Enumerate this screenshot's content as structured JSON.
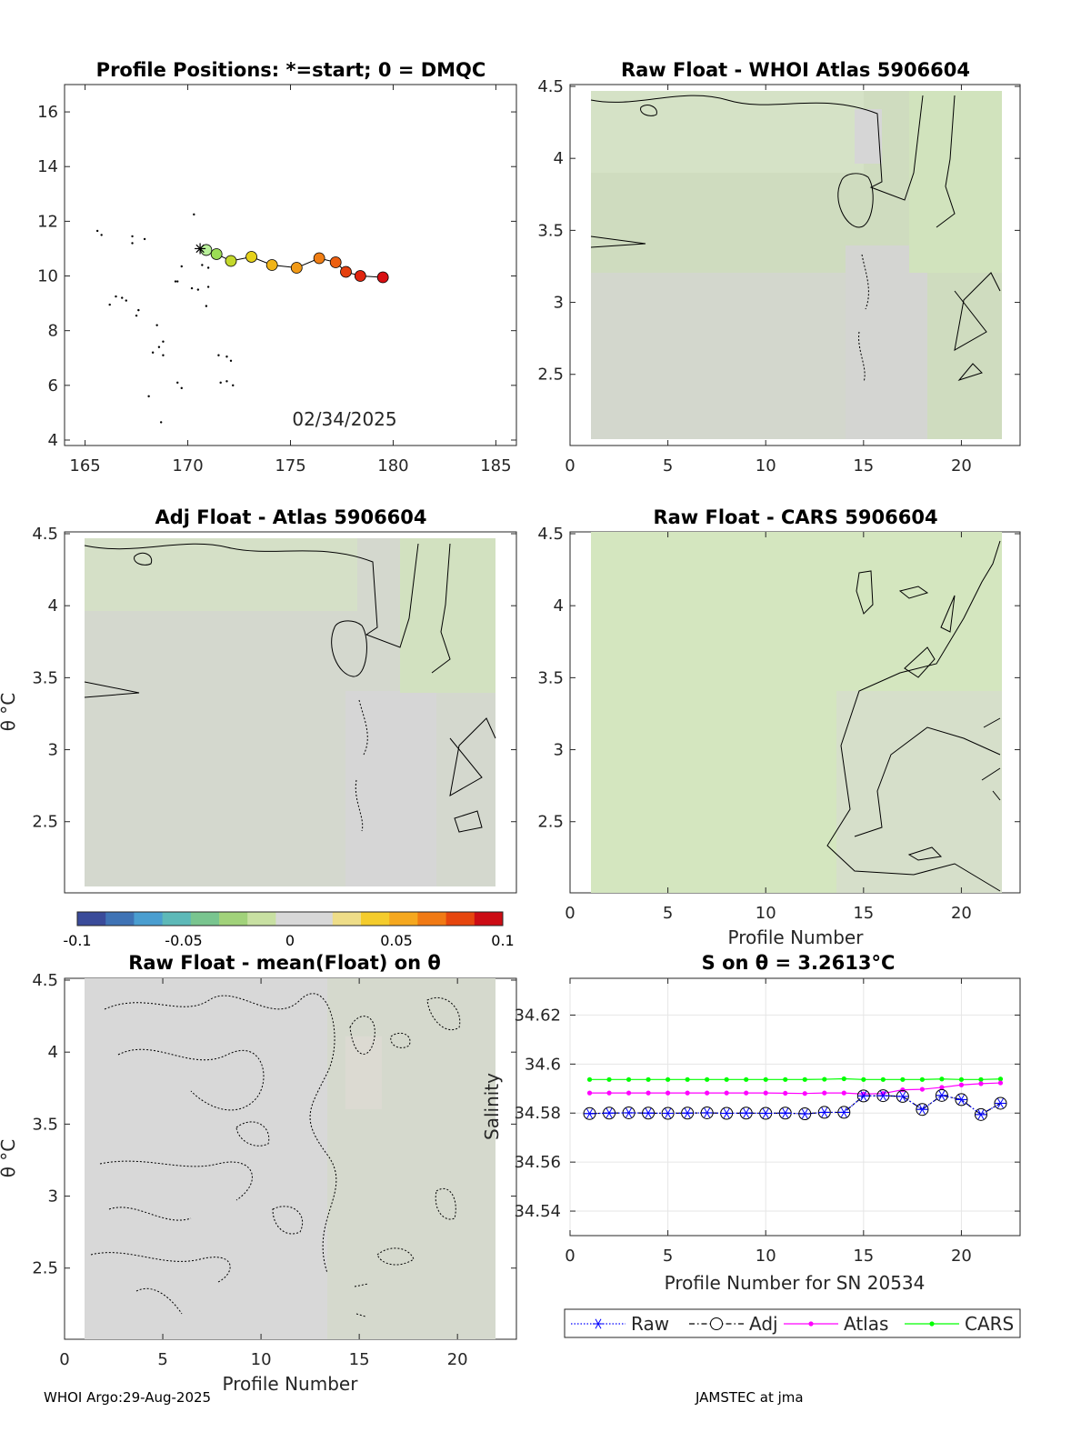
{
  "footer": {
    "left": "WHOI Argo:29-Aug-2025",
    "right": "JAMSTEC at jma"
  },
  "colorbar": {
    "ticks": [
      "-0.1",
      "-0.05",
      "0",
      "0.05",
      "0.1"
    ],
    "colors": [
      "#3a4b9a",
      "#3f73b5",
      "#4a9ed0",
      "#5db9b8",
      "#79c58f",
      "#a1d27a",
      "#c8e0a2",
      "#d8d8d8",
      "#d8d8d8",
      "#eedd88",
      "#f4cc2c",
      "#f5a81f",
      "#f17a14",
      "#e6460e",
      "#cc0c14"
    ]
  },
  "chart_data": [
    {
      "type": "scatter",
      "id": "positions",
      "title": "Profile Positions: *=start; 0 = DMQC",
      "xlim": [
        164,
        186
      ],
      "ylim": [
        3.8,
        17
      ],
      "xticks": [
        165,
        170,
        175,
        180,
        185
      ],
      "yticks": [
        4,
        6,
        8,
        10,
        12,
        14,
        16
      ],
      "annotation": "02/34/2025",
      "start": [
        170.6,
        11.0
      ],
      "track": [
        [
          170.6,
          11.0
        ],
        [
          170.9,
          10.95
        ],
        [
          171.4,
          10.8
        ],
        [
          172.1,
          10.55
        ],
        [
          173.1,
          10.7
        ],
        [
          174.1,
          10.4
        ],
        [
          175.3,
          10.3
        ],
        [
          176.4,
          10.65
        ],
        [
          177.2,
          10.5
        ],
        [
          177.7,
          10.15
        ],
        [
          178.4,
          10.0
        ],
        [
          179.5,
          9.95
        ]
      ],
      "track_colors": [
        "#ffffff",
        "#b9f09a",
        "#9bdd55",
        "#c4d82c",
        "#e6d21b",
        "#f0b418",
        "#f19a17",
        "#f07e14",
        "#ec5f10",
        "#e5400e",
        "#e0250f",
        "#d80f12"
      ],
      "dots": [
        [
          165.6,
          11.65
        ],
        [
          165.8,
          11.5
        ],
        [
          167.3,
          11.45
        ],
        [
          167.3,
          11.2
        ],
        [
          167.9,
          11.35
        ],
        [
          170.3,
          12.25
        ],
        [
          170.7,
          10.4
        ],
        [
          169.7,
          10.35
        ],
        [
          169.5,
          9.8
        ],
        [
          169.4,
          9.8
        ],
        [
          170.2,
          9.55
        ],
        [
          170.5,
          9.5
        ],
        [
          171.0,
          9.6
        ],
        [
          166.5,
          9.25
        ],
        [
          166.8,
          9.2
        ],
        [
          167.0,
          9.1
        ],
        [
          166.2,
          8.95
        ],
        [
          167.6,
          8.75
        ],
        [
          167.5,
          8.55
        ],
        [
          168.5,
          8.2
        ],
        [
          168.8,
          7.6
        ],
        [
          168.6,
          7.4
        ],
        [
          168.3,
          7.2
        ],
        [
          168.8,
          7.1
        ],
        [
          171.5,
          7.1
        ],
        [
          171.9,
          7.05
        ],
        [
          172.1,
          6.9
        ],
        [
          169.5,
          6.1
        ],
        [
          169.7,
          5.9
        ],
        [
          171.9,
          6.15
        ],
        [
          171.6,
          6.1
        ],
        [
          172.2,
          6.0
        ],
        [
          168.1,
          5.6
        ],
        [
          168.7,
          4.65
        ],
        [
          170.9,
          8.9
        ],
        [
          171.0,
          10.3
        ]
      ]
    },
    {
      "type": "heatmap",
      "id": "raw-whoi",
      "title": "Raw Float - WHOI Atlas  5906604",
      "xlim": [
        0,
        23
      ],
      "ylim": [
        2.05,
        4.5
      ],
      "xticks": [
        0,
        5,
        10,
        15,
        20
      ],
      "yticks": [
        "2.5",
        "3",
        "3.5",
        "4",
        "4.5"
      ],
      "field": "greenish-gray anomaly field"
    },
    {
      "type": "heatmap",
      "id": "adj-atlas",
      "title": "Adj Float - Atlas  5906604",
      "ylabel": "θ °C",
      "xlim": [
        0,
        22
      ],
      "ylim": [
        2.05,
        4.5
      ],
      "xticks": [],
      "yticks": [
        "2.5",
        "3",
        "3.5",
        "4",
        "4.5"
      ],
      "field": "greenish-gray anomaly field"
    },
    {
      "type": "heatmap",
      "id": "raw-cars",
      "title": "Raw Float - CARS  5906604",
      "xlabel": "Profile Number",
      "xlim": [
        0,
        23
      ],
      "ylim": [
        2.05,
        4.5
      ],
      "xticks": [
        0,
        5,
        10,
        15,
        20
      ],
      "yticks": [
        "2.5",
        "3",
        "3.5",
        "4",
        "4.5"
      ],
      "field": "light green anomaly field"
    },
    {
      "type": "heatmap",
      "id": "raw-mean",
      "title": "Raw Float - mean(Float) on θ",
      "ylabel": "θ °C",
      "xlabel": "Profile Number",
      "xlim": [
        0,
        23
      ],
      "ylim": [
        2.05,
        4.5
      ],
      "xticks": [
        0,
        5,
        10,
        15,
        20
      ],
      "yticks": [
        "2.5",
        "3",
        "3.5",
        "4",
        "4.5"
      ],
      "field": "gray anomaly field, dotted contours"
    },
    {
      "type": "line",
      "id": "salinity",
      "title": "S on θ = 3.2613°C",
      "xlabel": "Profile Number for SN 20534",
      "ylabel": "Salinity",
      "xlim": [
        0,
        23
      ],
      "ylim": [
        34.53,
        34.635
      ],
      "xticks": [
        0,
        5,
        10,
        15,
        20
      ],
      "yticks": [
        "34.54",
        "34.56",
        "34.58",
        "34.6",
        "34.62"
      ],
      "x": [
        1,
        2,
        3,
        4,
        5,
        6,
        7,
        8,
        9,
        10,
        11,
        12,
        13,
        14,
        15,
        16,
        17,
        18,
        19,
        20,
        21,
        22
      ],
      "series": [
        {
          "name": "Raw",
          "color": "#0000ff",
          "values": [
            34.5798,
            34.58,
            34.5801,
            34.58,
            34.5799,
            34.58,
            34.5801,
            34.5799,
            34.58,
            34.5799,
            34.58,
            34.5797,
            34.5803,
            34.5803,
            34.587,
            34.5871,
            34.5868,
            34.5815,
            34.5872,
            34.5855,
            34.5794,
            34.584
          ]
        },
        {
          "name": "Adj",
          "color": "#000000",
          "values": [
            34.5798,
            34.58,
            34.5801,
            34.58,
            34.5799,
            34.58,
            34.5801,
            34.5799,
            34.58,
            34.5799,
            34.58,
            34.5797,
            34.5803,
            34.5803,
            34.587,
            34.5871,
            34.5868,
            34.5815,
            34.5872,
            34.5855,
            34.5794,
            34.584
          ]
        },
        {
          "name": "Atlas",
          "color": "#ff00ff",
          "values": [
            34.5882,
            34.5882,
            34.5882,
            34.5882,
            34.5882,
            34.5882,
            34.5882,
            34.5882,
            34.5882,
            34.5882,
            34.5881,
            34.588,
            34.5882,
            34.5882,
            34.5878,
            34.588,
            34.5895,
            34.5897,
            34.5905,
            34.5915,
            34.592,
            34.5923
          ]
        },
        {
          "name": "CARS",
          "color": "#00ff00",
          "values": [
            34.5937,
            34.5937,
            34.5937,
            34.5937,
            34.5937,
            34.5937,
            34.5937,
            34.5937,
            34.5937,
            34.5937,
            34.5937,
            34.5937,
            34.5938,
            34.594,
            34.5937,
            34.5937,
            34.5937,
            34.5937,
            34.5939,
            34.5937,
            34.5937,
            34.5939
          ]
        }
      ]
    }
  ]
}
